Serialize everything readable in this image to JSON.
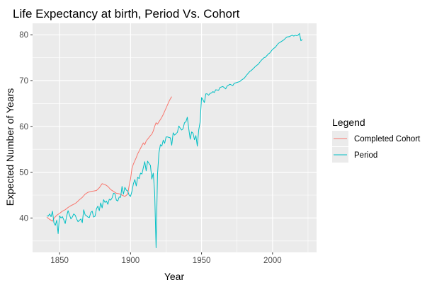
{
  "chart_data": {
    "type": "line",
    "title": "Life Expectancy at birth, Period Vs. Cohort",
    "xlabel": "Year",
    "ylabel": "Expected Number of Years",
    "xlim": [
      1831,
      2031
    ],
    "ylim": [
      32.5,
      82.5
    ],
    "x_ticks": [
      1850,
      1900,
      1950,
      2000
    ],
    "y_ticks": [
      40,
      50,
      60,
      70,
      80
    ],
    "grid": true,
    "legend": {
      "title": "Legend",
      "position": "right"
    },
    "colors": {
      "panel": "#ebebeb",
      "grid": "#ffffff",
      "cohort": "#f8766d",
      "period": "#00bfc4"
    },
    "series": [
      {
        "name": "Completed Cohort",
        "color": "#f8766d",
        "points": [
          [
            1841,
            40.2
          ],
          [
            1843,
            39.7
          ],
          [
            1845,
            39.3
          ],
          [
            1846,
            39.9
          ],
          [
            1848,
            40.6
          ],
          [
            1850,
            41.0
          ],
          [
            1852,
            41.5
          ],
          [
            1854,
            41.8
          ],
          [
            1856,
            42.3
          ],
          [
            1858,
            42.7
          ],
          [
            1860,
            43.0
          ],
          [
            1862,
            43.4
          ],
          [
            1864,
            44.0
          ],
          [
            1866,
            44.5
          ],
          [
            1868,
            45.2
          ],
          [
            1870,
            45.6
          ],
          [
            1872,
            45.8
          ],
          [
            1874,
            45.9
          ],
          [
            1876,
            46.0
          ],
          [
            1878,
            46.6
          ],
          [
            1880,
            47.5
          ],
          [
            1882,
            47.3
          ],
          [
            1884,
            46.9
          ],
          [
            1886,
            46.2
          ],
          [
            1888,
            45.8
          ],
          [
            1890,
            45.4
          ],
          [
            1892,
            45.3
          ],
          [
            1894,
            45.0
          ],
          [
            1896,
            44.7
          ],
          [
            1898,
            45.2
          ],
          [
            1899,
            47.0
          ],
          [
            1900,
            48.5
          ],
          [
            1901,
            50.8
          ],
          [
            1902,
            51.8
          ],
          [
            1903,
            52.5
          ],
          [
            1904,
            53.2
          ],
          [
            1905,
            54.0
          ],
          [
            1906,
            54.6
          ],
          [
            1907,
            55.2
          ],
          [
            1908,
            55.8
          ],
          [
            1909,
            56.4
          ],
          [
            1910,
            56.0
          ],
          [
            1911,
            56.8
          ],
          [
            1912,
            57.2
          ],
          [
            1913,
            57.6
          ],
          [
            1914,
            58.0
          ],
          [
            1915,
            58.3
          ],
          [
            1916,
            59.0
          ],
          [
            1917,
            60.0
          ],
          [
            1918,
            60.8
          ],
          [
            1919,
            60.5
          ],
          [
            1920,
            61.0
          ],
          [
            1921,
            61.5
          ],
          [
            1922,
            62.0
          ],
          [
            1923,
            62.6
          ],
          [
            1924,
            63.3
          ],
          [
            1925,
            64.0
          ],
          [
            1926,
            64.7
          ],
          [
            1927,
            65.4
          ],
          [
            1928,
            66.0
          ],
          [
            1929,
            66.5
          ]
        ]
      },
      {
        "name": "Period",
        "color": "#00bfc4",
        "points": [
          [
            1841,
            40.5
          ],
          [
            1842,
            40.4
          ],
          [
            1843,
            40.9
          ],
          [
            1844,
            40.3
          ],
          [
            1845,
            41.5
          ],
          [
            1846,
            39.0
          ],
          [
            1847,
            38.4
          ],
          [
            1848,
            39.5
          ],
          [
            1849,
            36.6
          ],
          [
            1850,
            40.5
          ],
          [
            1851,
            40.0
          ],
          [
            1852,
            40.3
          ],
          [
            1853,
            39.6
          ],
          [
            1854,
            38.8
          ],
          [
            1855,
            40.4
          ],
          [
            1856,
            41.6
          ],
          [
            1857,
            40.7
          ],
          [
            1858,
            39.8
          ],
          [
            1859,
            40.2
          ],
          [
            1860,
            40.9
          ],
          [
            1861,
            40.6
          ],
          [
            1862,
            39.8
          ],
          [
            1863,
            39.2
          ],
          [
            1864,
            39.5
          ],
          [
            1865,
            39.8
          ],
          [
            1866,
            39.0
          ],
          [
            1867,
            41.8
          ],
          [
            1868,
            40.7
          ],
          [
            1869,
            40.5
          ],
          [
            1870,
            40.2
          ],
          [
            1871,
            40.1
          ],
          [
            1872,
            41.2
          ],
          [
            1873,
            41.5
          ],
          [
            1874,
            40.2
          ],
          [
            1875,
            40.4
          ],
          [
            1876,
            42.0
          ],
          [
            1877,
            42.6
          ],
          [
            1878,
            41.6
          ],
          [
            1879,
            43.3
          ],
          [
            1880,
            42.2
          ],
          [
            1881,
            44.0
          ],
          [
            1882,
            43.4
          ],
          [
            1883,
            43.7
          ],
          [
            1884,
            43.0
          ],
          [
            1885,
            44.1
          ],
          [
            1886,
            43.9
          ],
          [
            1887,
            44.4
          ],
          [
            1888,
            45.4
          ],
          [
            1889,
            45.3
          ],
          [
            1890,
            43.9
          ],
          [
            1891,
            43.7
          ],
          [
            1892,
            44.6
          ],
          [
            1893,
            44.5
          ],
          [
            1894,
            46.9
          ],
          [
            1895,
            45.2
          ],
          [
            1896,
            46.7
          ],
          [
            1897,
            46.1
          ],
          [
            1898,
            45.9
          ],
          [
            1899,
            45.0
          ],
          [
            1900,
            44.7
          ],
          [
            1901,
            45.8
          ],
          [
            1902,
            47.5
          ],
          [
            1903,
            48.4
          ],
          [
            1904,
            47.0
          ],
          [
            1905,
            48.9
          ],
          [
            1906,
            48.6
          ],
          [
            1907,
            49.8
          ],
          [
            1908,
            49.6
          ],
          [
            1909,
            51.0
          ],
          [
            1910,
            52.3
          ],
          [
            1911,
            50.3
          ],
          [
            1912,
            52.4
          ],
          [
            1913,
            51.9
          ],
          [
            1914,
            51.5
          ],
          [
            1915,
            48.5
          ],
          [
            1916,
            49.8
          ],
          [
            1917,
            45.5
          ],
          [
            1918,
            33.5
          ],
          [
            1919,
            49.5
          ],
          [
            1920,
            54.2
          ],
          [
            1921,
            56.0
          ],
          [
            1922,
            55.7
          ],
          [
            1923,
            57.0
          ],
          [
            1924,
            56.3
          ],
          [
            1925,
            57.7
          ],
          [
            1926,
            57.7
          ],
          [
            1927,
            57.6
          ],
          [
            1928,
            57.5
          ],
          [
            1929,
            55.9
          ],
          [
            1930,
            58.6
          ],
          [
            1931,
            58.1
          ],
          [
            1932,
            58.4
          ],
          [
            1933,
            58.7
          ],
          [
            1934,
            60.1
          ],
          [
            1935,
            59.6
          ],
          [
            1936,
            59.2
          ],
          [
            1937,
            59.5
          ],
          [
            1938,
            60.8
          ],
          [
            1939,
            61.0
          ],
          [
            1940,
            62.0
          ],
          [
            1941,
            59.4
          ],
          [
            1942,
            57.2
          ],
          [
            1943,
            58.8
          ],
          [
            1944,
            58.5
          ],
          [
            1945,
            57.1
          ],
          [
            1946,
            58.0
          ],
          [
            1947,
            55.7
          ],
          [
            1948,
            59.2
          ],
          [
            1949,
            61.0
          ],
          [
            1950,
            66.3
          ],
          [
            1951,
            65.8
          ],
          [
            1952,
            65.2
          ],
          [
            1953,
            67.1
          ],
          [
            1954,
            67.1
          ],
          [
            1955,
            66.8
          ],
          [
            1956,
            67.2
          ],
          [
            1957,
            67.3
          ],
          [
            1958,
            67.6
          ],
          [
            1959,
            67.4
          ],
          [
            1960,
            68.0
          ],
          [
            1962,
            67.9
          ],
          [
            1963,
            68.5
          ],
          [
            1965,
            68.7
          ],
          [
            1967,
            68.2
          ],
          [
            1968,
            68.8
          ],
          [
            1970,
            69.2
          ],
          [
            1972,
            68.9
          ],
          [
            1973,
            69.4
          ],
          [
            1975,
            69.6
          ],
          [
            1977,
            69.8
          ],
          [
            1978,
            70.1
          ],
          [
            1980,
            70.5
          ],
          [
            1982,
            71.3
          ],
          [
            1984,
            72.0
          ],
          [
            1985,
            72.2
          ],
          [
            1987,
            72.8
          ],
          [
            1988,
            73.1
          ],
          [
            1990,
            73.6
          ],
          [
            1992,
            74.4
          ],
          [
            1994,
            75.0
          ],
          [
            1995,
            75.1
          ],
          [
            1997,
            75.8
          ],
          [
            1998,
            76.0
          ],
          [
            2000,
            76.8
          ],
          [
            2002,
            77.3
          ],
          [
            2004,
            78.1
          ],
          [
            2006,
            78.5
          ],
          [
            2008,
            78.9
          ],
          [
            2010,
            79.5
          ],
          [
            2012,
            79.6
          ],
          [
            2013,
            79.8
          ],
          [
            2014,
            79.9
          ],
          [
            2015,
            79.7
          ],
          [
            2016,
            79.9
          ],
          [
            2017,
            79.8
          ],
          [
            2018,
            79.9
          ],
          [
            2019,
            80.3
          ],
          [
            2020,
            78.7
          ],
          [
            2021,
            79.0
          ]
        ]
      }
    ]
  }
}
